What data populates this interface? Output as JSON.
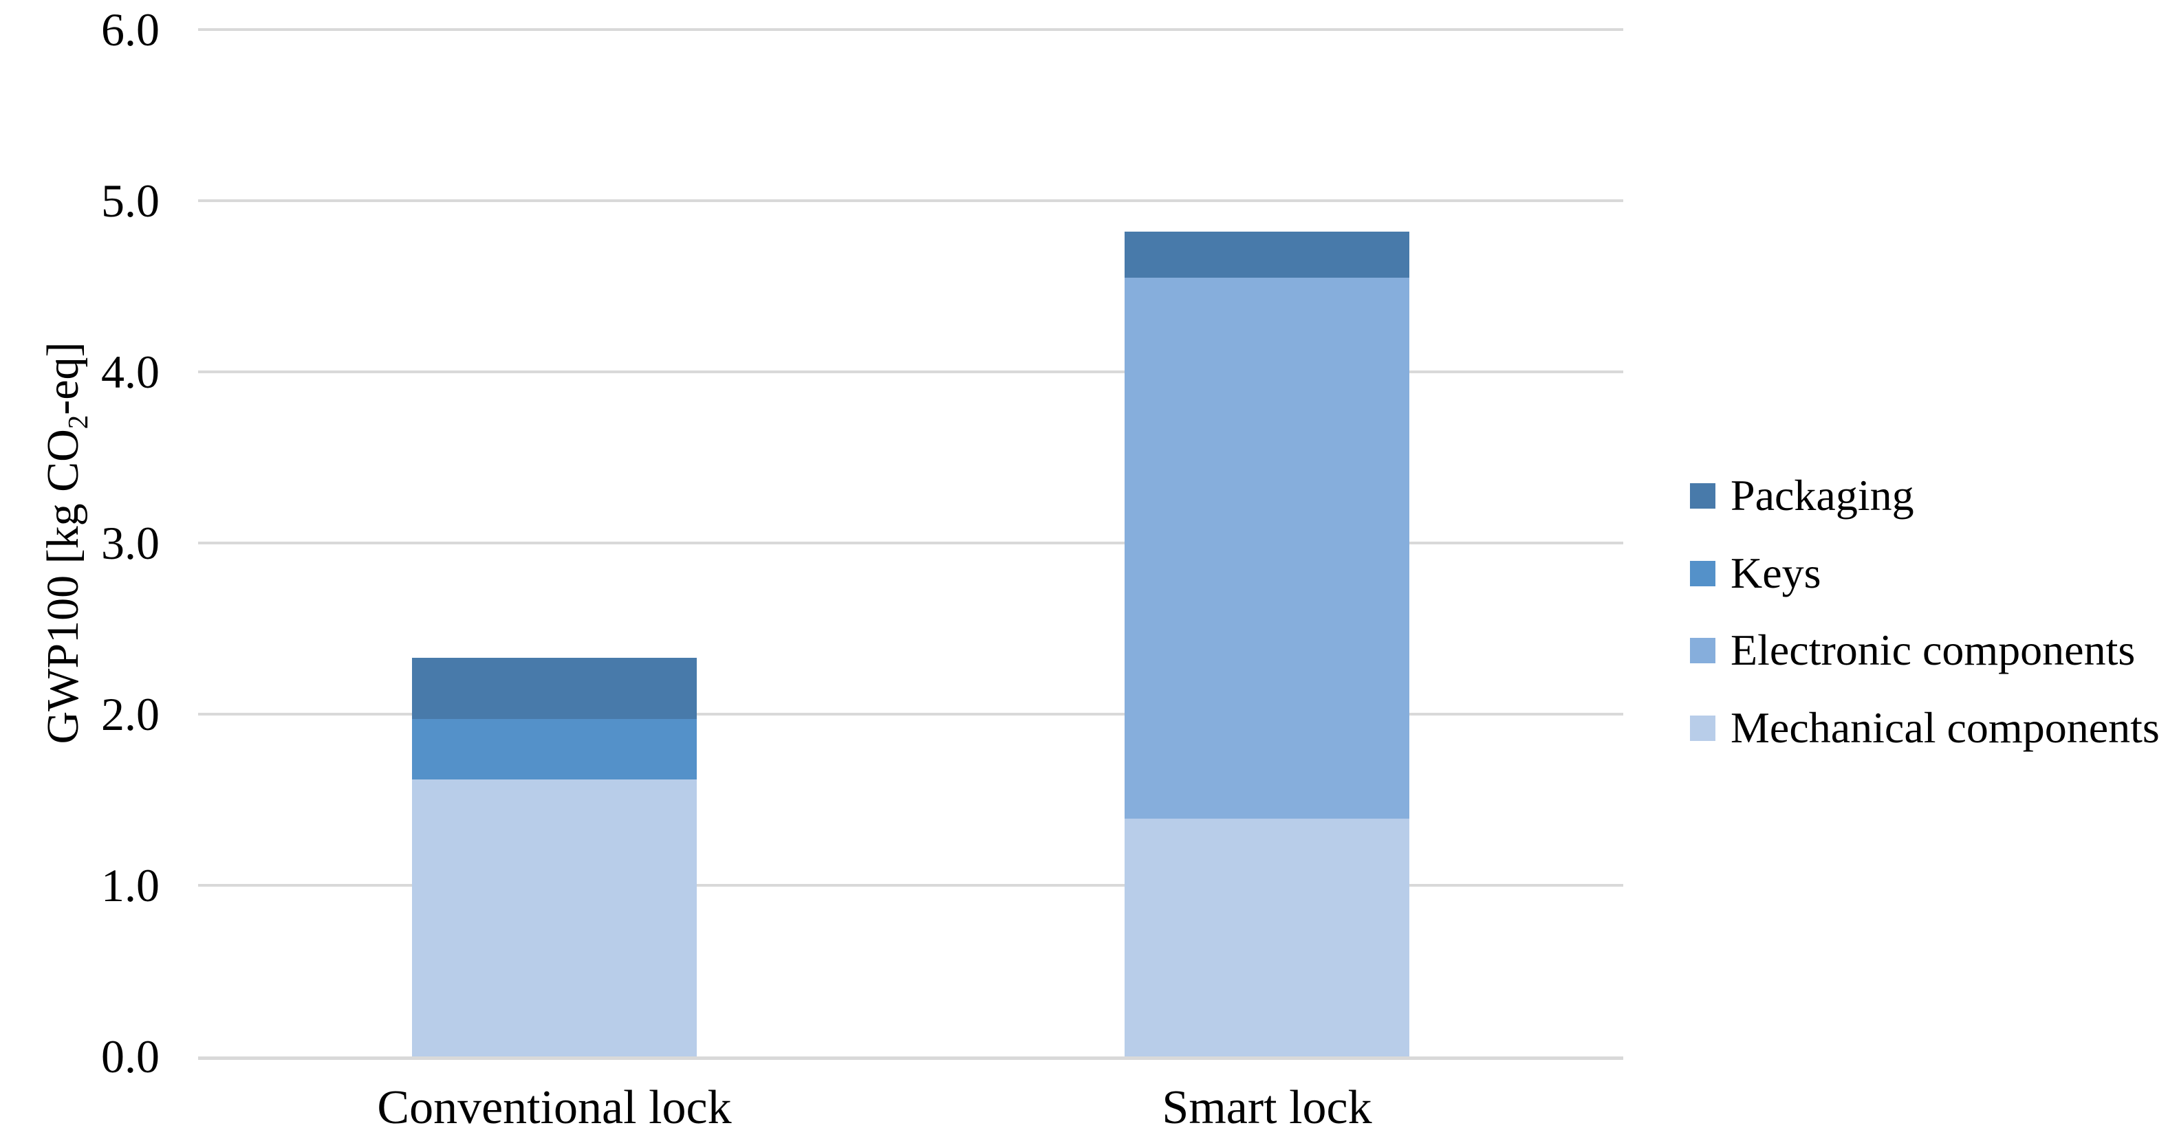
{
  "chart_data": {
    "type": "bar",
    "stacked": true,
    "categories": [
      "Conventional lock",
      "Smart lock"
    ],
    "series": [
      {
        "name": "Mechanical components",
        "color": "#B8CDE9",
        "values": [
          1.62,
          1.39
        ]
      },
      {
        "name": "Electronic components",
        "color": "#86AEDC",
        "values": [
          0,
          3.16
        ]
      },
      {
        "name": "Keys",
        "color": "#5491C9",
        "values": [
          0.35,
          0
        ]
      },
      {
        "name": "Packaging",
        "color": "#487AAA",
        "values": [
          0.36,
          0.27
        ]
      }
    ],
    "bar_totals": [
      2.33,
      4.82
    ],
    "ylabel_parts": {
      "prefix": "GWP100 [kg CO",
      "sub": "2",
      "suffix": "-eq]"
    },
    "ylabel_text": "GWP100 [kg CO2-eq]",
    "xlabel": "",
    "title": "",
    "ylim": [
      0,
      6
    ],
    "ytick_step": 1.0,
    "ytick_labels": [
      "0.0",
      "1.0",
      "2.0",
      "3.0",
      "4.0",
      "5.0",
      "6.0"
    ],
    "grid": true,
    "legend": {
      "position": "right",
      "entries_top_to_bottom": [
        "Packaging",
        "Keys",
        "Electronic components",
        "Mechanical components"
      ]
    },
    "colors": {
      "gridline": "#D9D9D9",
      "axis_line": "#D9D9D9",
      "text": "#000000",
      "background": "#FFFFFF"
    }
  }
}
